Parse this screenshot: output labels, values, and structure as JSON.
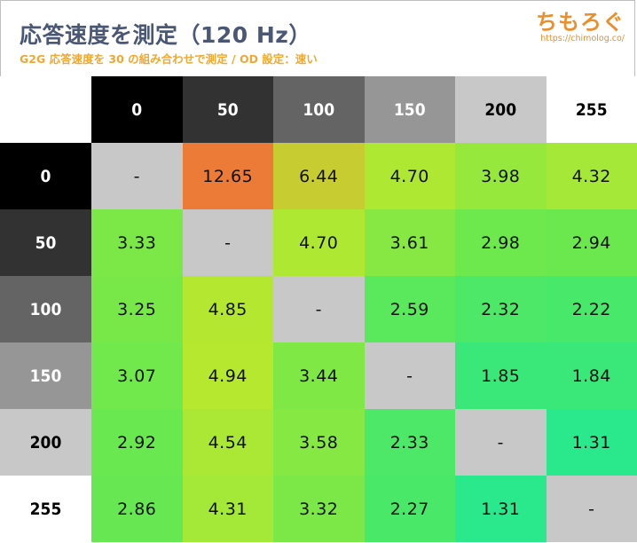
{
  "header": {
    "title": "応答速度を測定（120 Hz）",
    "subtitle": "G2G 応答速度を 30 の組み合わせで測定 / OD 設定：速い",
    "logo_text": "ちもろぐ",
    "logo_url": "https://chimolog.co/"
  },
  "chart_data": {
    "type": "heatmap",
    "x_labels": [
      "0",
      "50",
      "100",
      "150",
      "200",
      "255"
    ],
    "y_labels": [
      "0",
      "50",
      "100",
      "150",
      "200",
      "255"
    ],
    "values": [
      [
        "-",
        "12.65",
        "6.44",
        "4.70",
        "3.98",
        "4.32"
      ],
      [
        "3.33",
        "-",
        "4.70",
        "3.61",
        "2.98",
        "2.94"
      ],
      [
        "3.25",
        "4.85",
        "-",
        "2.59",
        "2.32",
        "2.22"
      ],
      [
        "3.07",
        "4.94",
        "3.44",
        "-",
        "1.85",
        "1.84"
      ],
      [
        "2.92",
        "4.54",
        "3.58",
        "2.33",
        "-",
        "1.31"
      ],
      [
        "2.86",
        "4.31",
        "3.32",
        "2.27",
        "1.31",
        "-"
      ]
    ],
    "diagonal_color": "#c8c8c8",
    "header_colors": [
      "#000000",
      "#323232",
      "#646464",
      "#969696",
      "#c8c8c8",
      "#ffffff"
    ],
    "header_text_colors": [
      "#ffffff",
      "#ffffff",
      "#ffffff",
      "#ffffff",
      "#000000",
      "#000000"
    ],
    "color_scale": [
      {
        "value": 1.3,
        "color": "#2ae88c"
      },
      {
        "value": 2.0,
        "color": "#3de874"
      },
      {
        "value": 3.0,
        "color": "#6ee84c"
      },
      {
        "value": 4.3,
        "color": "#a4e838"
      },
      {
        "value": 5.0,
        "color": "#b8e82e"
      },
      {
        "value": 6.5,
        "color": "#c8cc30"
      },
      {
        "value": 12.7,
        "color": "#ec7a38"
      }
    ]
  }
}
